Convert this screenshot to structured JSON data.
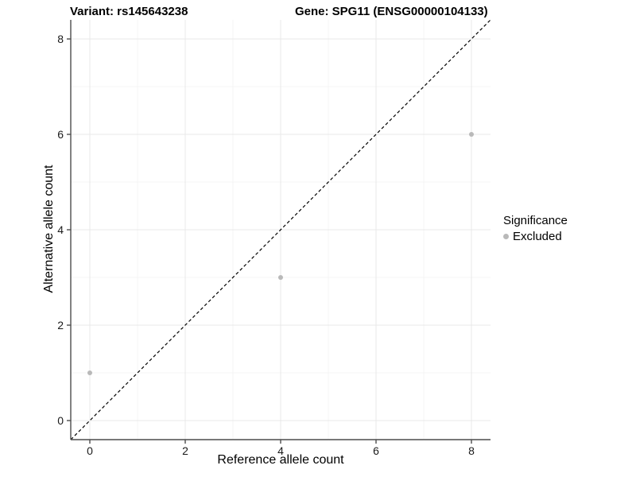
{
  "chart_data": {
    "type": "scatter",
    "title_left": "Variant: rs145643238",
    "title_right": "Gene: SPG11 (ENSG00000104133)",
    "xlabel": "Reference allele count",
    "ylabel": "Alternative allele count",
    "x_ticks": [
      0,
      2,
      4,
      6,
      8
    ],
    "y_ticks": [
      0,
      2,
      4,
      6,
      8
    ],
    "x_minor": [
      1,
      3,
      5,
      7
    ],
    "y_minor": [
      1,
      3,
      5,
      7
    ],
    "xlim": [
      -0.4,
      8.4
    ],
    "ylim": [
      -0.4,
      8.4
    ],
    "grid": true,
    "series": [
      {
        "name": "Excluded",
        "color": "#b9b9b9",
        "points": [
          {
            "x": 0,
            "y": 1
          },
          {
            "x": 4,
            "y": 3
          },
          {
            "x": 8,
            "y": 6
          }
        ]
      }
    ],
    "reference_line": {
      "type": "identity",
      "style": "dashed",
      "color": "#000000",
      "from": {
        "x": -0.4,
        "y": -0.4
      },
      "to": {
        "x": 8.4,
        "y": 8.4
      }
    },
    "legend": {
      "title": "Significance",
      "position": "right",
      "entries": [
        {
          "label": "Excluded",
          "color": "#b9b9b9"
        }
      ]
    }
  },
  "colors": {
    "background": "#ffffff",
    "grid_major": "#e9e9e9",
    "grid_minor": "#f4f4f4",
    "axis_line": "#4d4d4d",
    "tick_label": "#1a1a1a",
    "point": "#b9b9b9"
  }
}
